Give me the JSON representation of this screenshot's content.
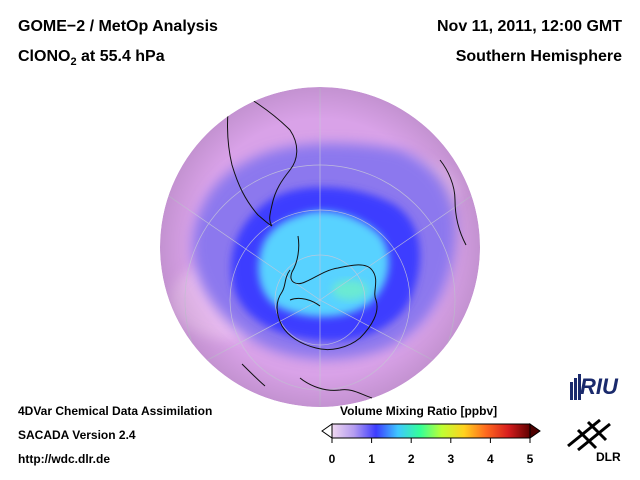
{
  "header": {
    "title_line1": "GOME−2 / MetOp Analysis",
    "species_prefix": "ClONO",
    "species_sub": "2",
    "species_suffix": " at 55.4 hPa",
    "datetime": "Nov 11, 2011, 12:00 GMT",
    "region": "Southern Hemisphere"
  },
  "footer": {
    "line1": "4DVar Chemical Data Assimilation",
    "line2": "SACADA Version 2.4",
    "line3": "http://wdc.dlr.de"
  },
  "colorbar": {
    "title": "Volume Mixing Ratio [ppbv]",
    "ticks": [
      "0",
      "1",
      "2",
      "3",
      "4",
      "5"
    ],
    "min": 0,
    "max": 5,
    "colors": [
      "#f0d8f0",
      "#b49cf0",
      "#3c3cff",
      "#3fc8ff",
      "#33ff99",
      "#bfff33",
      "#ffd21e",
      "#ff6a1e",
      "#d81e1e",
      "#600000"
    ]
  },
  "logos": {
    "riu": "RIU",
    "dlr": "DLR"
  },
  "map_colors": {
    "background_field": "#d9a2e8",
    "low_region": "#3c3cff",
    "core_region": "#59d2ff",
    "coast": "#111111",
    "grid": "#c8c8d8"
  }
}
